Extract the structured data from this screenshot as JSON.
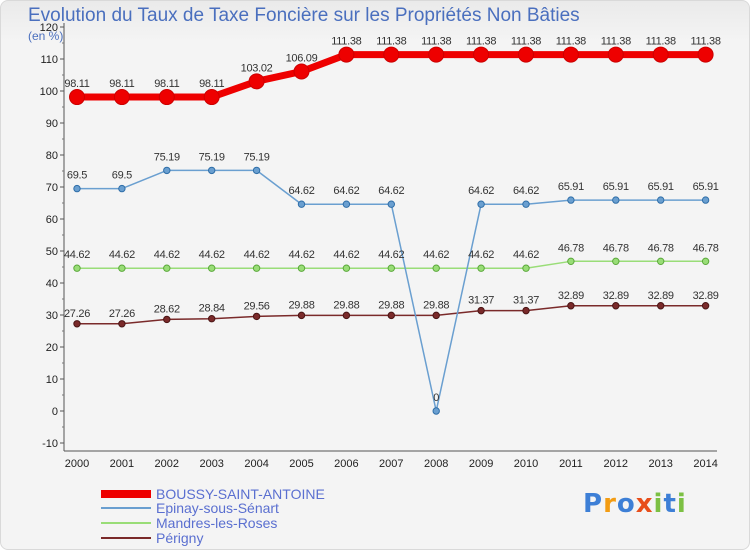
{
  "chart_data": {
    "type": "line",
    "title": "Evolution du Taux de Taxe Foncière sur les Propriétés Non Bâties",
    "ylabel": "(en %)",
    "xlabel": "",
    "ylim": [
      -10,
      120
    ],
    "yticks": [
      -10,
      0,
      10,
      20,
      30,
      40,
      50,
      60,
      70,
      80,
      90,
      100,
      110,
      120
    ],
    "categories": [
      "2000",
      "2001",
      "2002",
      "2003",
      "2004",
      "2005",
      "2006",
      "2007",
      "2008",
      "2009",
      "2010",
      "2011",
      "2012",
      "2013",
      "2014"
    ],
    "series": [
      {
        "name": "BOUSSY-SAINT-ANTOINE",
        "color": "#ee0000",
        "values": [
          98.11,
          98.11,
          98.11,
          98.11,
          103.02,
          106.09,
          111.38,
          111.38,
          111.38,
          111.38,
          111.38,
          111.38,
          111.38,
          111.38,
          111.38
        ],
        "labels": [
          "98.11",
          "98.11",
          "98.11",
          "98.11",
          "103.02",
          "106.09",
          "111.38",
          "111.38",
          "111.38",
          "111.38",
          "111.38",
          "111.38",
          "111.38",
          "111.38",
          "111.38"
        ]
      },
      {
        "name": "Epinay-sous-Sénart",
        "color": "#6a9fd0",
        "values": [
          69.5,
          69.5,
          75.19,
          75.19,
          75.19,
          64.62,
          64.62,
          64.62,
          0,
          64.62,
          64.62,
          65.91,
          65.91,
          65.91,
          65.91
        ],
        "labels": [
          "69.5",
          "69.5",
          "75.19",
          "75.19",
          "75.19",
          "64.62",
          "64.62",
          "64.62",
          "0",
          "64.62",
          "64.62",
          "65.91",
          "65.91",
          "65.91",
          "65.91"
        ]
      },
      {
        "name": "Mandres-les-Roses",
        "color": "#99dd77",
        "values": [
          44.62,
          44.62,
          44.62,
          44.62,
          44.62,
          44.62,
          44.62,
          44.62,
          44.62,
          44.62,
          44.62,
          46.78,
          46.78,
          46.78,
          46.78
        ],
        "labels": [
          "44.62",
          "44.62",
          "44.62",
          "44.62",
          "44.62",
          "44.62",
          "44.62",
          "44.62",
          "44.62",
          "44.62",
          "44.62",
          "46.78",
          "46.78",
          "46.78",
          "46.78"
        ]
      },
      {
        "name": "Périgny",
        "color": "#7a2a2a",
        "values": [
          27.26,
          27.26,
          28.62,
          28.84,
          29.56,
          29.88,
          29.88,
          29.88,
          29.88,
          31.37,
          31.37,
          32.89,
          32.89,
          32.89,
          32.89
        ],
        "labels": [
          "27.26",
          "27.26",
          "28.62",
          "28.84",
          "29.56",
          "29.88",
          "29.88",
          "29.88",
          "29.88",
          "31.37",
          "31.37",
          "32.89",
          "32.89",
          "32.89",
          "32.89"
        ]
      }
    ]
  },
  "logo": {
    "letters": [
      "P",
      "r",
      "o",
      "x",
      "i",
      "t",
      "i"
    ],
    "colors": [
      "#3d7fd6",
      "#f39c12",
      "#3d7fd6",
      "#e84e1b",
      "#7cc043",
      "#3d7fd6",
      "#7cc043"
    ]
  }
}
